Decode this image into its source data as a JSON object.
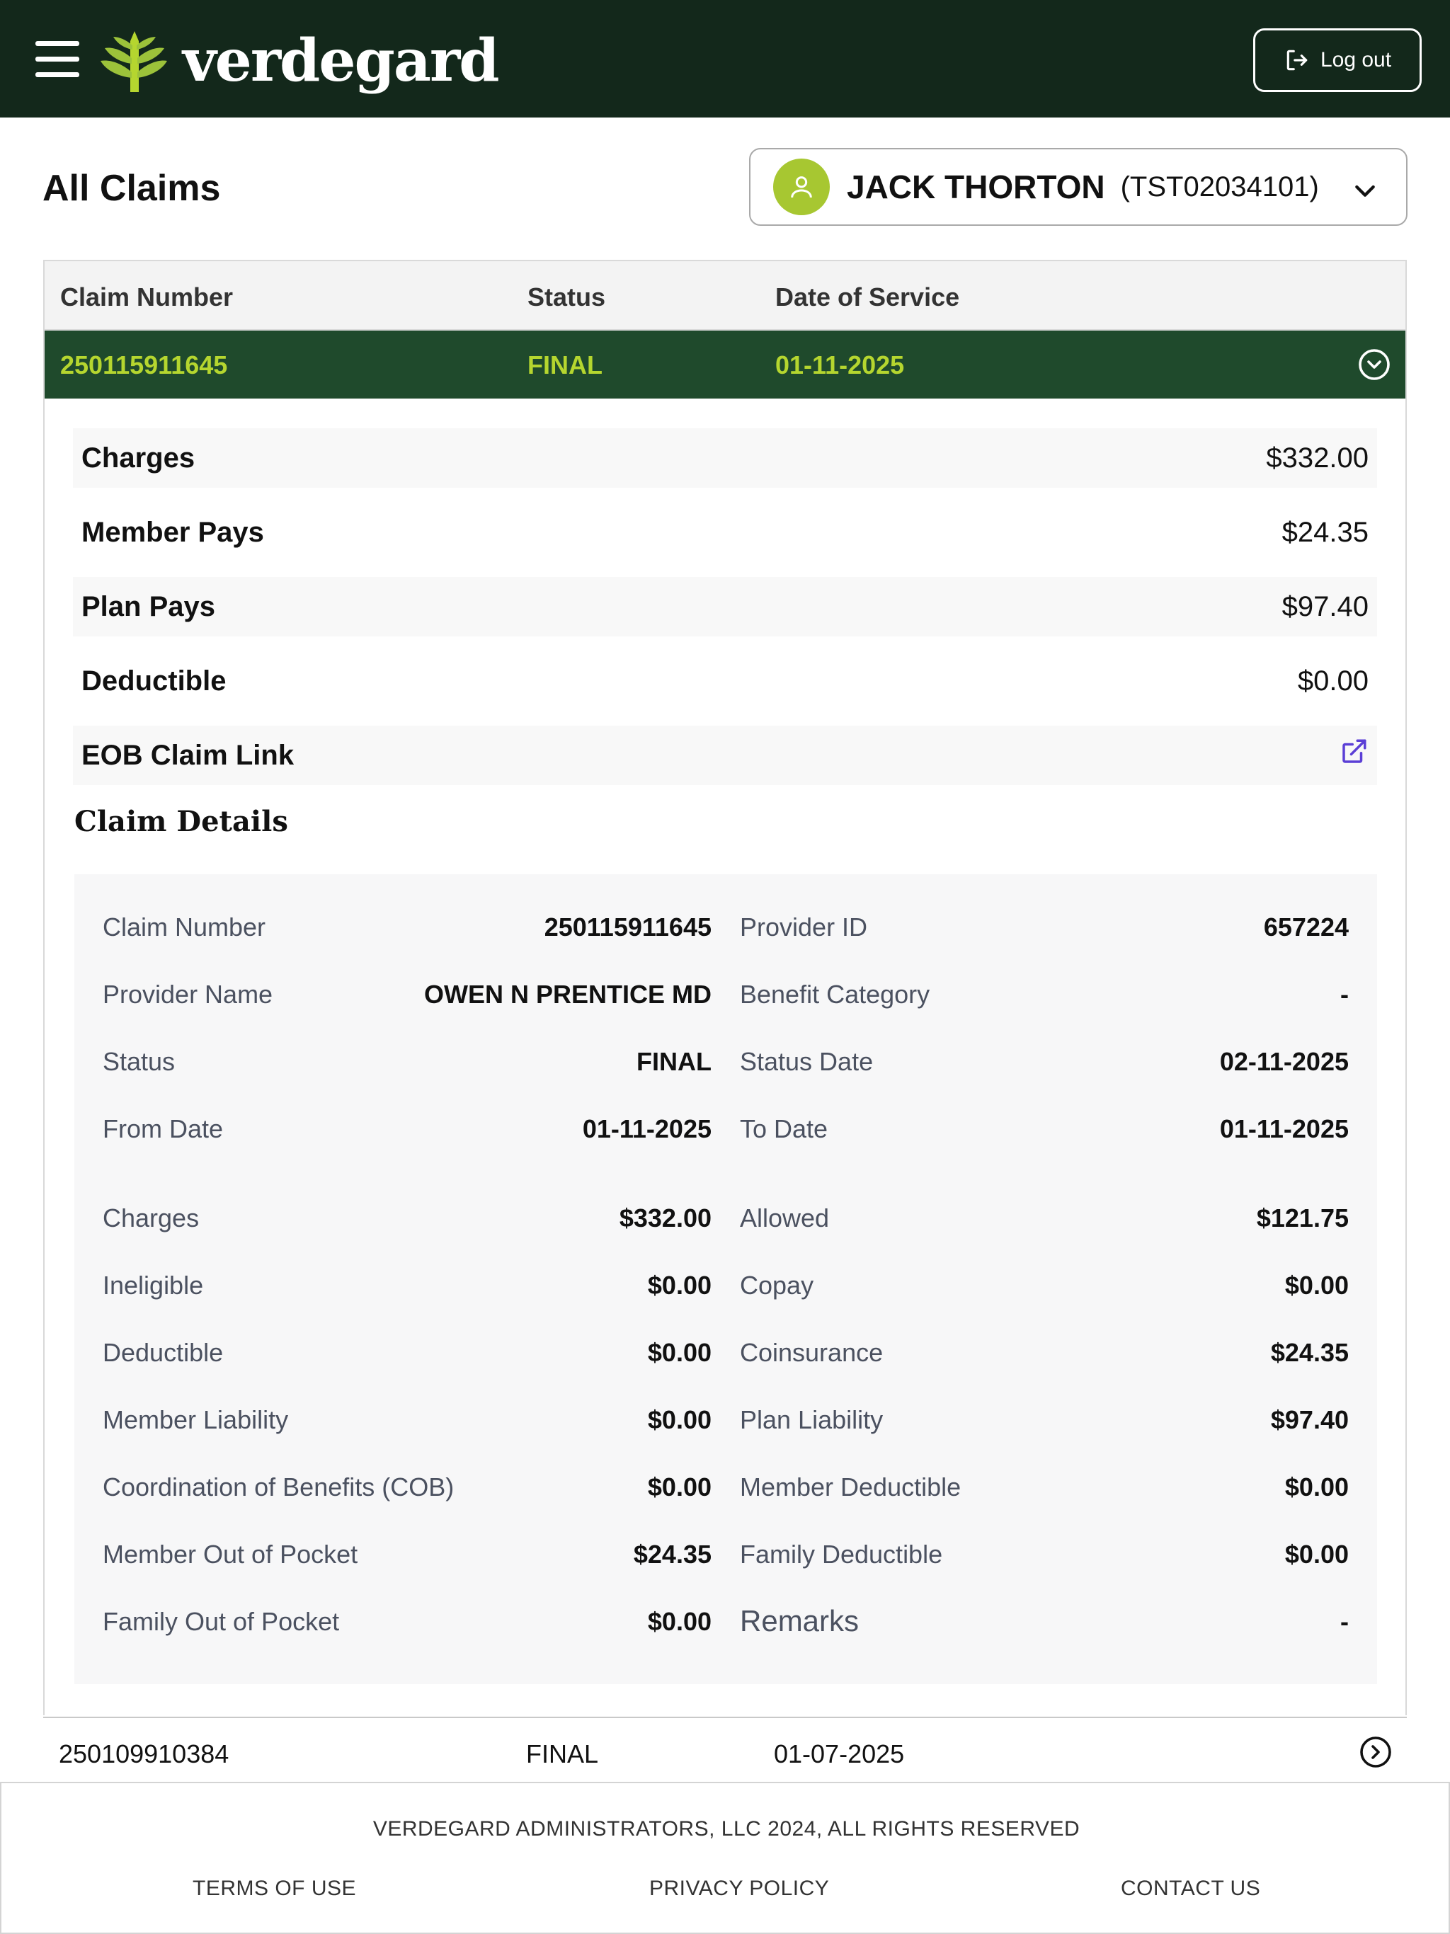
{
  "header": {
    "brand": "verdegard",
    "logout_label": "Log out"
  },
  "page": {
    "title": "All Claims"
  },
  "member": {
    "name": "JACK THORTON",
    "id": "(TST02034101)"
  },
  "table": {
    "columns": [
      "Claim Number",
      "Status",
      "Date of Service"
    ],
    "active_row": {
      "claim_number": "250115911645",
      "status": "FINAL",
      "date": "01-11-2025"
    },
    "summary": [
      {
        "label": "Charges",
        "value": "$332.00"
      },
      {
        "label": "Member Pays",
        "value": "$24.35"
      },
      {
        "label": "Plan Pays",
        "value": "$97.40"
      },
      {
        "label": "Deductible",
        "value": "$0.00"
      },
      {
        "label": "EOB Claim Link"
      }
    ],
    "details_title": "Claim Details",
    "details": [
      [
        {
          "label": "Claim Number",
          "value": "250115911645"
        },
        {
          "label": "Provider ID",
          "value": "657224"
        }
      ],
      [
        {
          "label": "Provider Name",
          "value": "OWEN N PRENTICE MD"
        },
        {
          "label": "Benefit Category",
          "value": "-"
        }
      ],
      [
        {
          "label": "Status",
          "value": "FINAL"
        },
        {
          "label": "Status Date",
          "value": "02-11-2025"
        }
      ],
      [
        {
          "label": "From Date",
          "value": "01-11-2025"
        },
        {
          "label": "To Date",
          "value": "01-11-2025"
        }
      ],
      [
        {
          "label": "Charges",
          "value": "$332.00"
        },
        {
          "label": "Allowed",
          "value": "$121.75"
        }
      ],
      [
        {
          "label": "Ineligible",
          "value": "$0.00"
        },
        {
          "label": "Copay",
          "value": "$0.00"
        }
      ],
      [
        {
          "label": "Deductible",
          "value": "$0.00"
        },
        {
          "label": "Coinsurance",
          "value": "$24.35"
        }
      ],
      [
        {
          "label": "Member Liability",
          "value": "$0.00"
        },
        {
          "label": "Plan Liability",
          "value": "$97.40"
        }
      ],
      [
        {
          "label": "Coordination of Benefits (COB)",
          "value": "$0.00"
        },
        {
          "label": "Member Deductible",
          "value": "$0.00"
        }
      ],
      [
        {
          "label": "Member Out of Pocket",
          "value": "$24.35"
        },
        {
          "label": "Family Deductible",
          "value": "$0.00"
        }
      ],
      [
        {
          "label": "Family Out of Pocket",
          "value": "$0.00"
        },
        {
          "label": "Remarks",
          "value": "-"
        }
      ]
    ],
    "next_row": {
      "claim_number": "250109910384",
      "status": "FINAL",
      "date": "01-07-2025"
    }
  },
  "footer": {
    "copyright": "VERDEGARD ADMINISTRATORS, LLC 2024, ALL RIGHTS RESERVED",
    "links": [
      "TERMS OF USE",
      "PRIVACY POLICY",
      "CONTACT US"
    ]
  },
  "colors": {
    "header_bg": "#13281b",
    "active_row_bg": "#1f4a2c",
    "accent_green": "#b5d62f",
    "link_purple": "#5b3fd6"
  }
}
